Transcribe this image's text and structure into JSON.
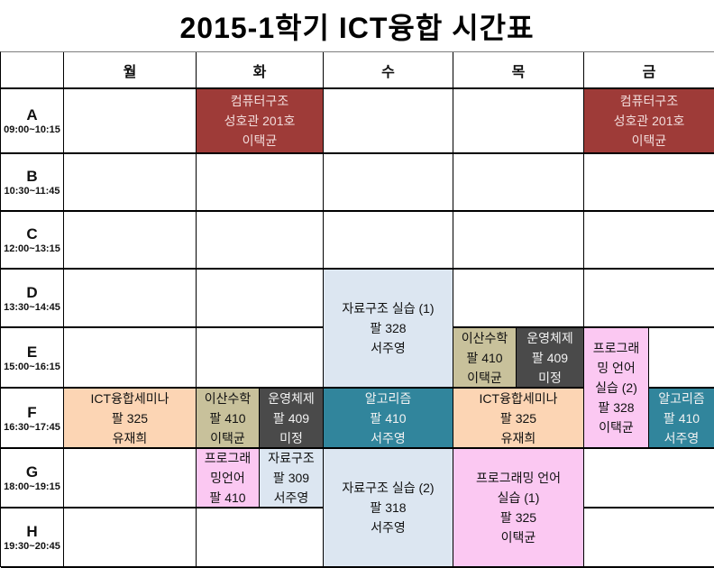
{
  "title": "2015-1학기 ICT융합 시간표",
  "days": [
    "월",
    "화",
    "수",
    "목",
    "금"
  ],
  "periods": [
    {
      "letter": "A",
      "time": "09:00~10:15"
    },
    {
      "letter": "B",
      "time": "10:30~11:45"
    },
    {
      "letter": "C",
      "time": "12:00~13:15"
    },
    {
      "letter": "D",
      "time": "13:30~14:45"
    },
    {
      "letter": "E",
      "time": "15:00~16:15"
    },
    {
      "letter": "F",
      "time": "16:30~17:45"
    },
    {
      "letter": "G",
      "time": "18:00~19:15"
    },
    {
      "letter": "H",
      "time": "19:30~20:45"
    }
  ],
  "courses": {
    "computer_arch": {
      "name": "컴퓨터구조",
      "room": "성호관 201호",
      "prof": "이택균",
      "text": "컴퓨터구조\n성호관 201호\n이택균"
    },
    "data_struct_lab1": {
      "name": "자료구조 실습 (1)",
      "room": "팔 328",
      "prof": "서주영",
      "text": "자료구조 실습 (1)\n팔 328\n서주영"
    },
    "discrete_math": {
      "name": "이산수학",
      "room": "팔 410",
      "prof": "이택균",
      "text": "이산수학\n팔 410\n이택균"
    },
    "os": {
      "name": "운영체제",
      "room": "팔 409",
      "prof": "미정",
      "text": "운영체제\n팔 409\n미정"
    },
    "prog_lang_lab2": {
      "name": "프로그래밍 언어 실습 (2)",
      "room": "팔 328",
      "prof": "이택균",
      "text": "프로그래\n밍 언어\n실습 (2)\n팔 328\n이택균"
    },
    "ict_seminar": {
      "name": "ICT융합세미나",
      "room": "팔 325",
      "prof": "유재희",
      "text": "ICT융합세미나\n팔 325\n유재희"
    },
    "algorithm": {
      "name": "알고리즘",
      "room": "팔 410",
      "prof": "서주영",
      "text": "알고리즘\n팔 410\n서주영"
    },
    "prog_lang": {
      "name": "프로그래밍언어",
      "room": "팔 410",
      "prof": "",
      "text": "프로그래\n밍언어\n팔 410"
    },
    "data_struct": {
      "name": "자료구조",
      "room": "팔 309",
      "prof": "서주영",
      "text": "자료구조\n팔 309\n서주영"
    },
    "data_struct_lab2": {
      "name": "자료구조 실습 (2)",
      "room": "팔 318",
      "prof": "서주영",
      "text": "자료구조 실습 (2)\n팔 318\n서주영"
    },
    "prog_lang_lab1": {
      "name": "프로그래밍 언어 실습 (1)",
      "room": "팔 325",
      "prof": "이택균",
      "text": "프로그래밍 언어\n실습 (1)\n팔 325\n이택균"
    }
  },
  "colors": {
    "dark-red": "#9E3B38",
    "dark-red-text": "#F2DCDB",
    "light-blue": "#DCE6F1",
    "tan": "#C8C19B",
    "dark-gray": "#4A4A4A",
    "pink": "#FBC8F2",
    "peach": "#FCD5B4",
    "teal": "#31859C",
    "light-text": "#F2F2F2"
  }
}
